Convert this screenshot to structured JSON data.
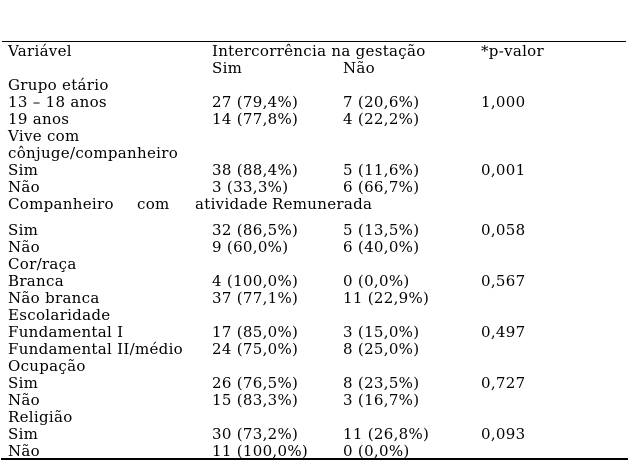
{
  "page": {
    "background": "#ffffff",
    "text_color": "#000000"
  },
  "table": {
    "header": {
      "variable": "Variável",
      "group": "Intercorrência na gestação",
      "yes": "Sim",
      "no": "Não",
      "pvalue": "*p-valor"
    },
    "rows": [
      {
        "variable": "Grupo etário",
        "yes": "",
        "no": "",
        "p": ""
      },
      {
        "variable": "13 – 18 anos",
        "yes": "27 (79,4%)",
        "no": "7 (20,6%)",
        "p": "1,000"
      },
      {
        "variable": "19 anos",
        "yes": "14 (77,8%)",
        "no": "4 (22,2%)",
        "p": ""
      },
      {
        "variable": "Vive com",
        "yes": "",
        "no": "",
        "p": ""
      },
      {
        "variable": "cônjuge/companheiro",
        "yes": "",
        "no": "",
        "p": ""
      },
      {
        "variable": "Sim",
        "yes": "38 (88,4%)",
        "no": "5 (11,6%)",
        "p": "0,001"
      },
      {
        "variable": "Não",
        "yes": "3 (33,3%)",
        "no": "6 (66,7%)",
        "p": ""
      },
      {
        "words": [
          "Companheiro",
          "com",
          "atividade",
          "Remunerada"
        ]
      },
      {
        "variable": "Sim",
        "yes": "32 (86,5%)",
        "no": "5 (13,5%)",
        "p": "0,058"
      },
      {
        "variable": "Não",
        "yes": "9 (60,0%)",
        "no": "6 (40,0%)",
        "p": ""
      },
      {
        "variable": "Cor/raça",
        "yes": "",
        "no": "",
        "p": ""
      },
      {
        "variable": "Branca",
        "yes": "4 (100,0%)",
        "no": "0 (0,0%)",
        "p": "0,567"
      },
      {
        "variable": "Não branca",
        "yes": "37 (77,1%)",
        "no": "11 (22,9%)",
        "p": ""
      },
      {
        "variable": "Escolaridade",
        "yes": "",
        "no": "",
        "p": ""
      },
      {
        "variable": "Fundamental I",
        "yes": "17 (85,0%)",
        "no": "3 (15,0%)",
        "p": "0,497"
      },
      {
        "variable": "Fundamental II/médio",
        "yes": "24 (75,0%)",
        "no": "8 (25,0%)",
        "p": ""
      },
      {
        "variable": "Ocupação",
        "yes": "",
        "no": "",
        "p": ""
      },
      {
        "variable": "Sim",
        "yes": "26 (76,5%)",
        "no": "8 (23,5%)",
        "p": "0,727"
      },
      {
        "variable": "Não",
        "yes": "15 (83,3%)",
        "no": "3 (16,7%)",
        "p": ""
      },
      {
        "variable": "Religião",
        "yes": "",
        "no": "",
        "p": ""
      },
      {
        "variable": "Sim",
        "yes": "30 (73,2%)",
        "no": "11 (26,8%)",
        "p": "0,093"
      },
      {
        "variable": "Não",
        "yes": "11 (100,0%)",
        "no": "0 (0,0%)",
        "p": ""
      }
    ]
  }
}
